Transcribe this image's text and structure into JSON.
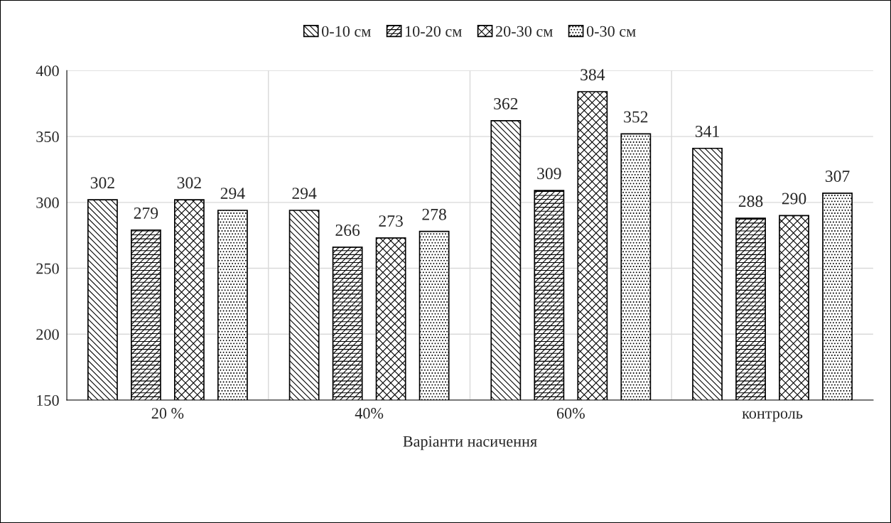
{
  "chart_data": {
    "type": "bar",
    "xlabel": "Варіанти насичення",
    "categories": [
      "20 %",
      "40%",
      "60%",
      "контроль"
    ],
    "series": [
      {
        "name": "0-10 см",
        "color": "#000000",
        "values": [
          302,
          294,
          362,
          341
        ]
      },
      {
        "name": "10-20 см",
        "color": "#000000",
        "values": [
          279,
          266,
          309,
          288
        ]
      },
      {
        "name": "20-30 см",
        "color": "#000000",
        "values": [
          302,
          273,
          384,
          290
        ]
      },
      {
        "name": "0-30 см",
        "color": "#000000",
        "values": [
          294,
          278,
          352,
          307
        ]
      }
    ],
    "ylim": [
      150,
      400
    ],
    "yticks": [
      150,
      200,
      250,
      300,
      350,
      400
    ],
    "grid": true,
    "legend": "top",
    "data_labels": true
  }
}
